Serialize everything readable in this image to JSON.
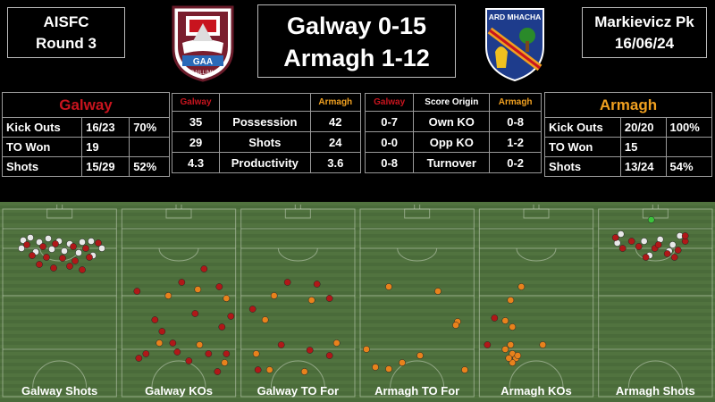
{
  "header": {
    "left": {
      "line1": "AISFC",
      "line2": "Round 3"
    },
    "right": {
      "line1": "Markievicz Pk",
      "line2": "16/06/24"
    },
    "score": {
      "line1": "Galway 0-15",
      "line2": "Armagh 1-12"
    }
  },
  "crests": {
    "galway": {
      "text": "GAA",
      "subtext": "GAILLIMH"
    },
    "armagh": {
      "text": "ARD MHACHA"
    }
  },
  "galway_table": {
    "team": "Galway",
    "rows": [
      {
        "label": "Kick Outs",
        "value": "16/23",
        "pct": "70%"
      },
      {
        "label": "TO Won",
        "value": "19",
        "pct": ""
      },
      {
        "label": "Shots",
        "value": "15/29",
        "pct": "52%"
      }
    ]
  },
  "stats_table": {
    "head_left": "Galway",
    "head_mid": "",
    "head_right": "Armagh",
    "rows": [
      {
        "g": "35",
        "label": "Possession",
        "a": "42"
      },
      {
        "g": "29",
        "label": "Shots",
        "a": "24"
      },
      {
        "g": "4.3",
        "label": "Productivity",
        "a": "3.6"
      }
    ]
  },
  "origin_table": {
    "head_left": "Galway",
    "head_mid": "Score Origin",
    "head_right": "Armagh",
    "rows": [
      {
        "g": "0-7",
        "label": "Own KO",
        "a": "0-8"
      },
      {
        "g": "0-0",
        "label": "Opp KO",
        "a": "1-2"
      },
      {
        "g": "0-8",
        "label": "Turnover",
        "a": "0-2"
      }
    ]
  },
  "armagh_table": {
    "team": "Armagh",
    "rows": [
      {
        "label": "Kick Outs",
        "value": "20/20",
        "pct": "100%"
      },
      {
        "label": "TO Won",
        "value": "15",
        "pct": ""
      },
      {
        "label": "Shots",
        "value": "13/24",
        "pct": "54%"
      }
    ]
  },
  "colors": {
    "galway_red": "#c8141e",
    "armagh_orange": "#f0a020",
    "pitch_green": "#4a6b3a",
    "miss_white": "#e8e8e8",
    "score_red": "#b01818",
    "score_orange": "#e8821c",
    "goal_green": "#3cc23c"
  },
  "pitches": [
    {
      "label": "Galway Shots"
    },
    {
      "label": "Galway KOs"
    },
    {
      "label": "Galway TO For"
    },
    {
      "label": "Armagh TO For"
    },
    {
      "label": "Armagh KOs"
    },
    {
      "label": "Armagh Shots"
    }
  ]
}
